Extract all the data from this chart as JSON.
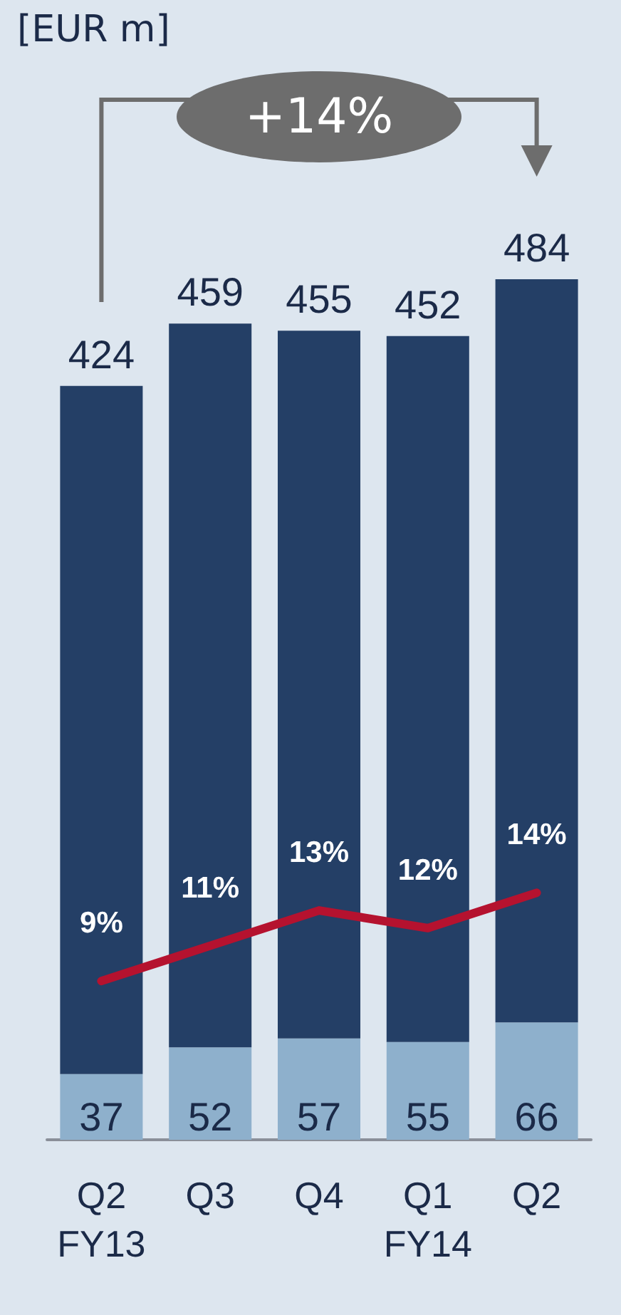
{
  "chart_data": {
    "type": "bar",
    "categories": [
      "Q2\nFY13",
      "Q3",
      "Q4",
      "Q1\nFY14",
      "Q2"
    ],
    "stacked": true,
    "series": [
      {
        "color": "#8eb0cc",
        "values": [
          37,
          52,
          57,
          55,
          66
        ],
        "value_labels": [
          "37",
          "52",
          "57",
          "55",
          "66"
        ]
      },
      {
        "color": "#243f66",
        "values": [
          387,
          407,
          398,
          397,
          418
        ]
      },
      {
        "type": "line",
        "axis": "y2",
        "color": "#b5122f",
        "values": [
          9,
          11,
          13,
          12,
          14
        ],
        "value_labels": [
          "9%",
          "11%",
          "13%",
          "12%",
          "14%"
        ]
      }
    ],
    "totals": [
      "424",
      "459",
      "455",
      "452",
      "484"
    ],
    "tick_labels": "x",
    "marker": "none",
    "annotations": [
      "[EUR m]",
      "+14%"
    ]
  }
}
